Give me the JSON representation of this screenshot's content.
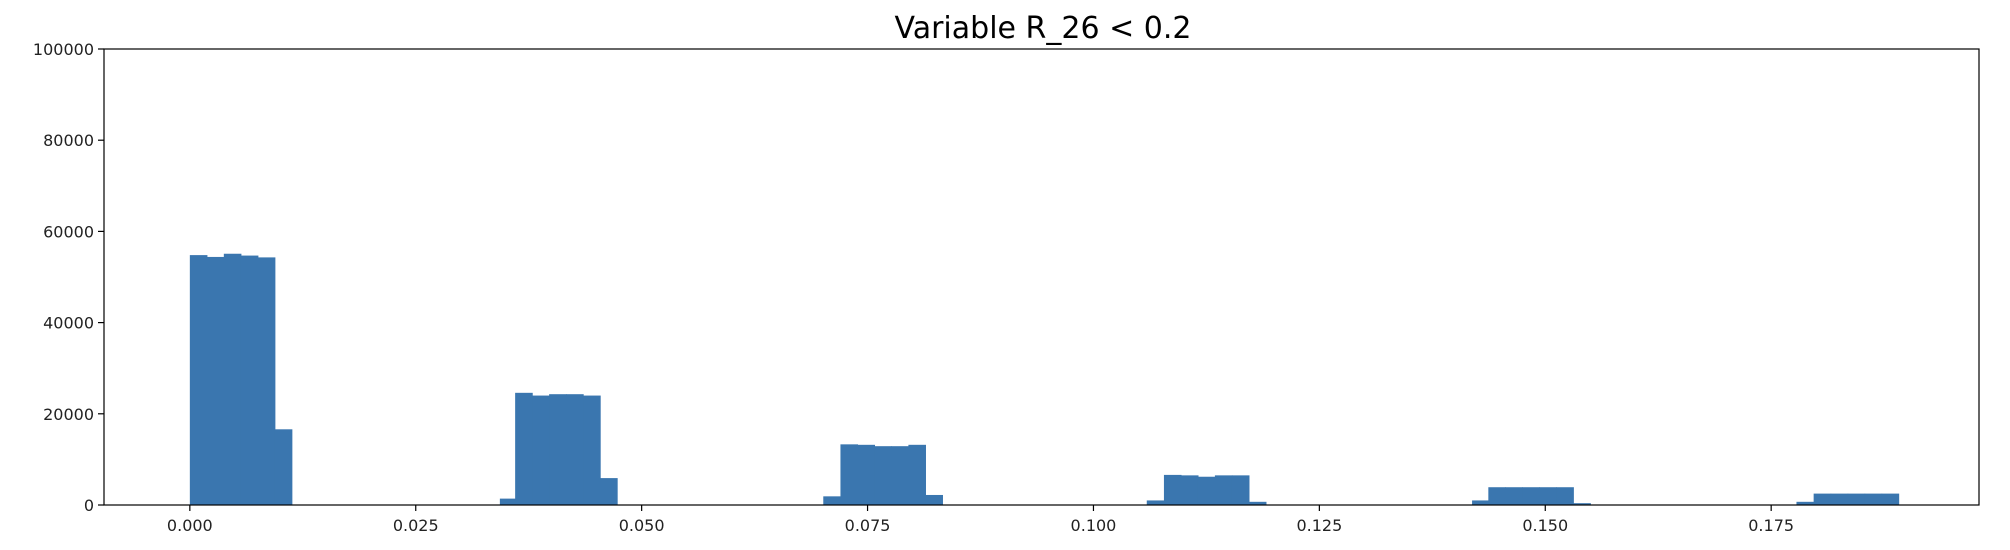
{
  "chart_data": {
    "type": "bar",
    "title": "Variable R_26 < 0.2",
    "xlabel": "",
    "ylabel": "",
    "xlim": [
      -0.0095,
      0.198
    ],
    "ylim": [
      0,
      100000
    ],
    "grid": false,
    "legend": false,
    "bar_color": "#3a76af",
    "xticks": [
      0.0,
      0.025,
      0.05,
      0.075,
      0.1,
      0.125,
      0.15,
      0.175
    ],
    "xtick_labels": [
      "0.000",
      "0.025",
      "0.050",
      "0.075",
      "0.100",
      "0.125",
      "0.150",
      "0.175"
    ],
    "yticks": [
      0,
      20000,
      40000,
      60000,
      80000,
      100000
    ],
    "ytick_labels": [
      "0",
      "20000",
      "40000",
      "60000",
      "80000",
      "100000"
    ],
    "bin_width": 0.00188,
    "bins": [
      {
        "x": 0.0,
        "count": 54800
      },
      {
        "x": 0.00188,
        "count": 54400
      },
      {
        "x": 0.00376,
        "count": 55100
      },
      {
        "x": 0.00564,
        "count": 54700
      },
      {
        "x": 0.00752,
        "count": 54300
      },
      {
        "x": 0.0094,
        "count": 16600
      },
      {
        "x": 0.03431,
        "count": 1400
      },
      {
        "x": 0.036,
        "count": 24600
      },
      {
        "x": 0.03788,
        "count": 24000
      },
      {
        "x": 0.03976,
        "count": 24300
      },
      {
        "x": 0.04164,
        "count": 24300
      },
      {
        "x": 0.04352,
        "count": 24000
      },
      {
        "x": 0.0454,
        "count": 5900
      },
      {
        "x": 0.0701,
        "count": 1900
      },
      {
        "x": 0.072,
        "count": 13300
      },
      {
        "x": 0.07388,
        "count": 13200
      },
      {
        "x": 0.07576,
        "count": 12900
      },
      {
        "x": 0.07764,
        "count": 12900
      },
      {
        "x": 0.07952,
        "count": 13200
      },
      {
        "x": 0.0814,
        "count": 2200
      },
      {
        "x": 0.1059,
        "count": 1000
      },
      {
        "x": 0.1078,
        "count": 6600
      },
      {
        "x": 0.10968,
        "count": 6500
      },
      {
        "x": 0.11156,
        "count": 6200
      },
      {
        "x": 0.11344,
        "count": 6500
      },
      {
        "x": 0.11532,
        "count": 6500
      },
      {
        "x": 0.1172,
        "count": 700
      },
      {
        "x": 0.1419,
        "count": 1000
      },
      {
        "x": 0.1437,
        "count": 3900
      },
      {
        "x": 0.14558,
        "count": 3900
      },
      {
        "x": 0.14746,
        "count": 3900
      },
      {
        "x": 0.14934,
        "count": 3900
      },
      {
        "x": 0.15122,
        "count": 3900
      },
      {
        "x": 0.1531,
        "count": 400
      },
      {
        "x": 0.1778,
        "count": 700
      },
      {
        "x": 0.1797,
        "count": 2500
      },
      {
        "x": 0.18158,
        "count": 2500
      },
      {
        "x": 0.18346,
        "count": 2500
      },
      {
        "x": 0.18534,
        "count": 2500
      },
      {
        "x": 0.18722,
        "count": 2500
      }
    ]
  }
}
